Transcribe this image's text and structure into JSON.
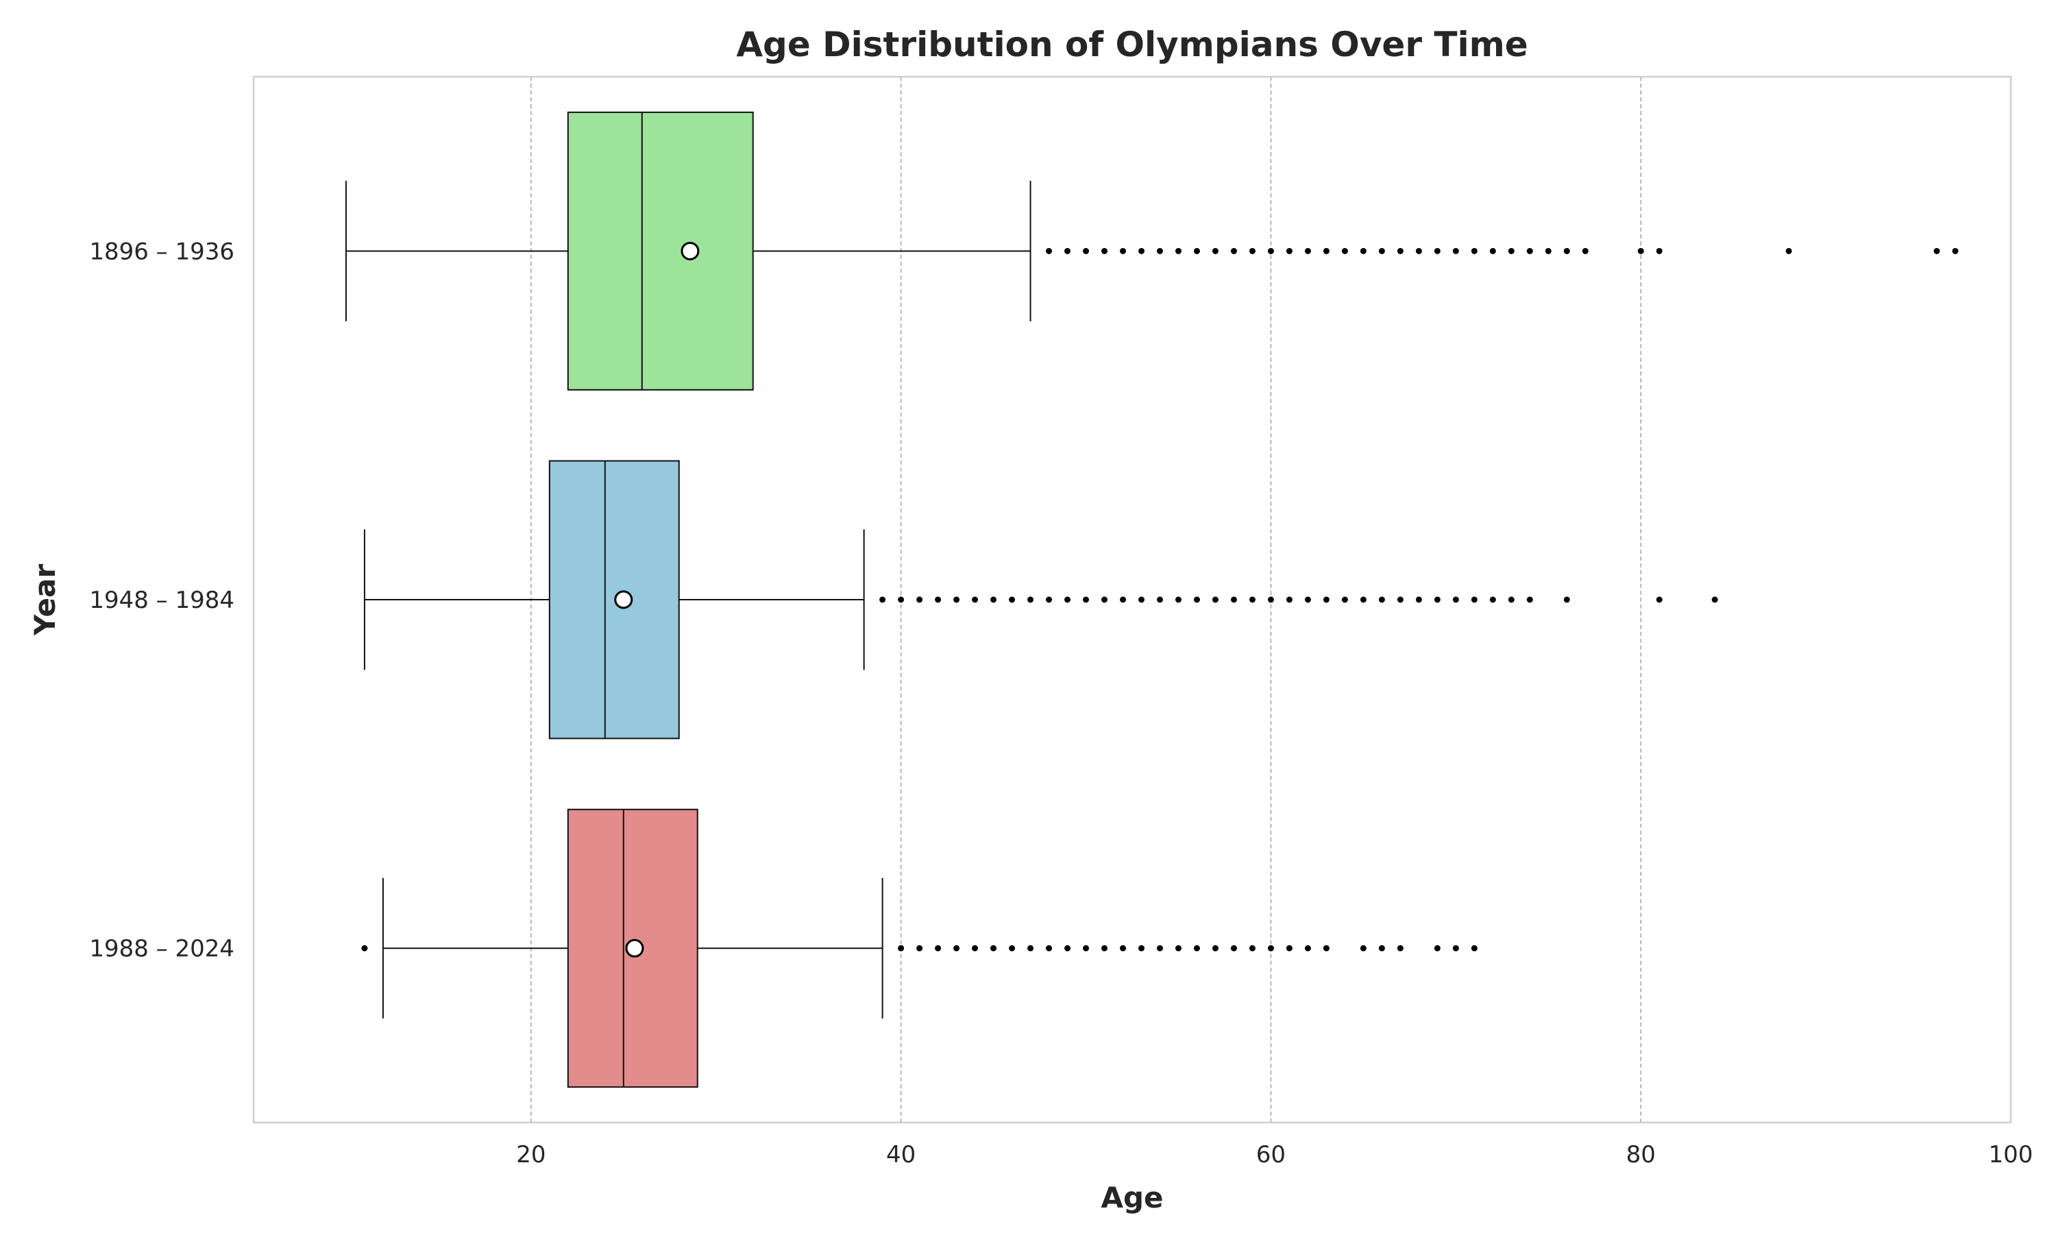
{
  "chart_data": {
    "type": "boxplot",
    "orientation": "horizontal",
    "title": "Age Distribution of Olympians Over Time",
    "xlabel": "Age",
    "ylabel": "Year",
    "xlim": [
      5,
      100
    ],
    "xticks": [
      20,
      40,
      60,
      80,
      100
    ],
    "grid": "x-dashed",
    "series": [
      {
        "name": "1896 – 1936",
        "color": "#9de39a",
        "whisker_low": 10,
        "q1": 22,
        "median": 26,
        "q3": 32,
        "whisker_high": 47,
        "mean": 28.6,
        "outliers": [
          48,
          49,
          50,
          51,
          52,
          53,
          54,
          55,
          56,
          57,
          58,
          59,
          60,
          61,
          62,
          63,
          64,
          65,
          66,
          67,
          68,
          69,
          70,
          71,
          72,
          73,
          74,
          75,
          76,
          77,
          80,
          81,
          88,
          96,
          97
        ]
      },
      {
        "name": "1948 – 1984",
        "color": "#96c8de",
        "whisker_low": 11,
        "q1": 21,
        "median": 24,
        "q3": 28,
        "whisker_high": 38,
        "mean": 25,
        "outliers": [
          39,
          40,
          41,
          42,
          43,
          44,
          45,
          46,
          47,
          48,
          49,
          50,
          51,
          52,
          53,
          54,
          55,
          56,
          57,
          58,
          59,
          60,
          61,
          62,
          63,
          64,
          65,
          66,
          67,
          68,
          69,
          70,
          71,
          72,
          73,
          74,
          76,
          81,
          84
        ]
      },
      {
        "name": "1988 – 2024",
        "color": "#e28c8c",
        "whisker_low": 12,
        "q1": 22,
        "median": 25,
        "q3": 29,
        "whisker_high": 39,
        "mean": 25.6,
        "outliers": [
          11,
          40,
          41,
          42,
          43,
          44,
          45,
          46,
          47,
          48,
          49,
          50,
          51,
          52,
          53,
          54,
          55,
          56,
          57,
          58,
          59,
          60,
          61,
          62,
          63,
          65,
          66,
          67,
          69,
          70,
          71
        ]
      }
    ]
  }
}
